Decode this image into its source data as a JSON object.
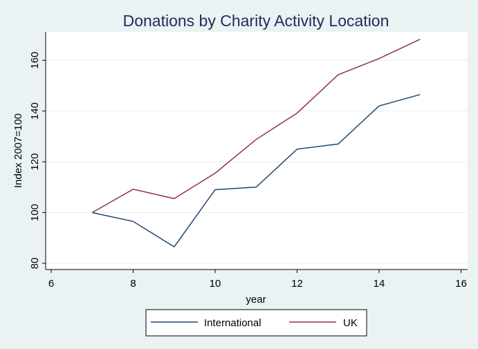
{
  "chart_data": {
    "type": "line",
    "title": "Donations by Charity Activity Location",
    "xlabel": "year",
    "ylabel": "Index 2007=100",
    "xlim": [
      6,
      16
    ],
    "ylim": [
      80,
      170
    ],
    "xticks": [
      6,
      8,
      10,
      12,
      14,
      16
    ],
    "yticks": [
      80,
      100,
      120,
      140,
      160
    ],
    "grid": true,
    "legend_position": "bottom",
    "x": [
      7,
      8,
      9,
      10,
      11,
      12,
      13,
      14,
      15
    ],
    "series": [
      {
        "name": "International",
        "color": "#1a476f",
        "values": [
          100,
          96.5,
          86.5,
          109,
          110,
          125,
          127,
          142,
          146.5
        ]
      },
      {
        "name": "UK",
        "color": "#90353b",
        "values": [
          100,
          109.2,
          105.5,
          115.5,
          128.8,
          139.2,
          154.3,
          160.7,
          168.3
        ]
      }
    ]
  },
  "colors": {
    "background": "#eaf2f3",
    "plot_background": "#ffffff",
    "title": "#1e2d5a"
  }
}
